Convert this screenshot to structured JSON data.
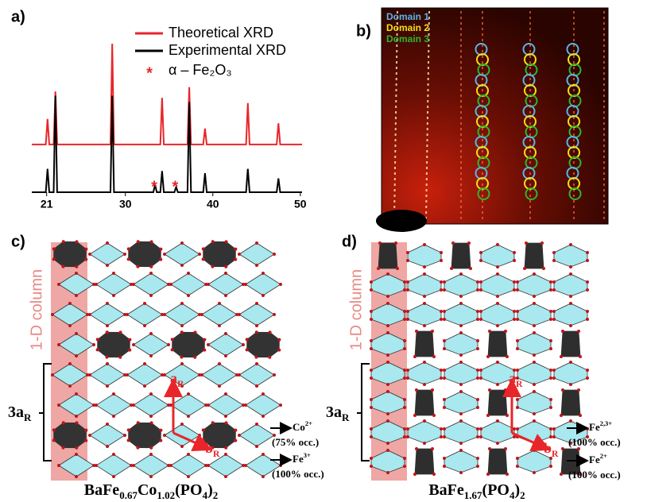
{
  "chart_data": {
    "type": "line",
    "panel_label": "a)",
    "x": [
      19.3,
      20.9,
      21.1,
      21.3,
      21.8,
      22.0,
      22.2,
      28.3,
      28.5,
      28.7,
      33.2,
      33.4,
      33.6,
      34.0,
      34.2,
      34.4,
      35.6,
      35.8,
      36.0,
      37.1,
      37.3,
      37.5,
      38.9,
      39.1,
      39.3,
      43.8,
      44.0,
      44.2,
      47.3,
      47.5,
      47.7,
      50.2
    ],
    "series": [
      {
        "name": "Theoretical XRD",
        "color": "#e8262a",
        "values": [
          45,
          45,
          69,
          45,
          45,
          95,
          45,
          45,
          140,
          45,
          45,
          45,
          45,
          45,
          89,
          45,
          45,
          45,
          45,
          45,
          99,
          45,
          45,
          60,
          45,
          45,
          84,
          45,
          45,
          65,
          45,
          45
        ]
      },
      {
        "name": "Experimental XRD",
        "color": "#000000",
        "values": [
          0,
          0,
          22,
          0,
          0,
          91,
          0,
          0,
          91,
          0,
          0,
          7,
          0,
          0,
          20,
          0,
          0,
          5,
          0,
          0,
          85,
          0,
          0,
          18,
          0,
          0,
          22,
          0,
          0,
          13,
          0,
          0
        ]
      }
    ],
    "markers": {
      "name": "α – Fe₂O₃",
      "symbol": "*",
      "color": "#e8262a",
      "x": [
        33.3,
        35.7
      ]
    },
    "xlim": [
      19.3,
      50.2
    ],
    "xticks": [
      21,
      30,
      40,
      50
    ],
    "ylim": [
      0,
      140
    ]
  },
  "panel_b": {
    "label": "b)",
    "domains": [
      {
        "name": "Domain 1",
        "color": "#5ab4e6"
      },
      {
        "name": "Domain 2",
        "color": "#f2e01a"
      },
      {
        "name": "Domain 3",
        "color": "#2fb52f"
      }
    ]
  },
  "panel_c": {
    "label": "c)",
    "column_label": "1-D column",
    "lattice": {
      "base": "3a",
      "sub": "R"
    },
    "axis_a": {
      "base": "a",
      "sub": "R"
    },
    "axis_b": {
      "base": "b",
      "sub": "R"
    },
    "sites": [
      {
        "ion": {
          "base": "Co",
          "sup": "2+"
        },
        "occupancy": "(75% occ.)"
      },
      {
        "ion": {
          "base": "Fe",
          "sup": "3+"
        },
        "occupancy": "(100% occ.)"
      }
    ],
    "formula": [
      "BaFe",
      "0.67",
      "Co",
      "1.02",
      "(PO",
      "4",
      ")",
      "2"
    ]
  },
  "panel_d": {
    "label": "d)",
    "column_label": "1-D column",
    "lattice": {
      "base": "3a",
      "sub": "R"
    },
    "axis_a": {
      "base": "a",
      "sub": "R"
    },
    "axis_b": {
      "base": "b",
      "sub": "R"
    },
    "sites": [
      {
        "ion": {
          "base": "Fe",
          "sup": "2,3+"
        },
        "occupancy": "(100% occ.)"
      },
      {
        "ion": {
          "base": "Fe",
          "sup": "2+"
        },
        "occupancy": "(100% occ.)"
      }
    ],
    "formula": [
      "BaFe",
      "1.67",
      "(PO",
      "4",
      ")",
      "2"
    ]
  }
}
